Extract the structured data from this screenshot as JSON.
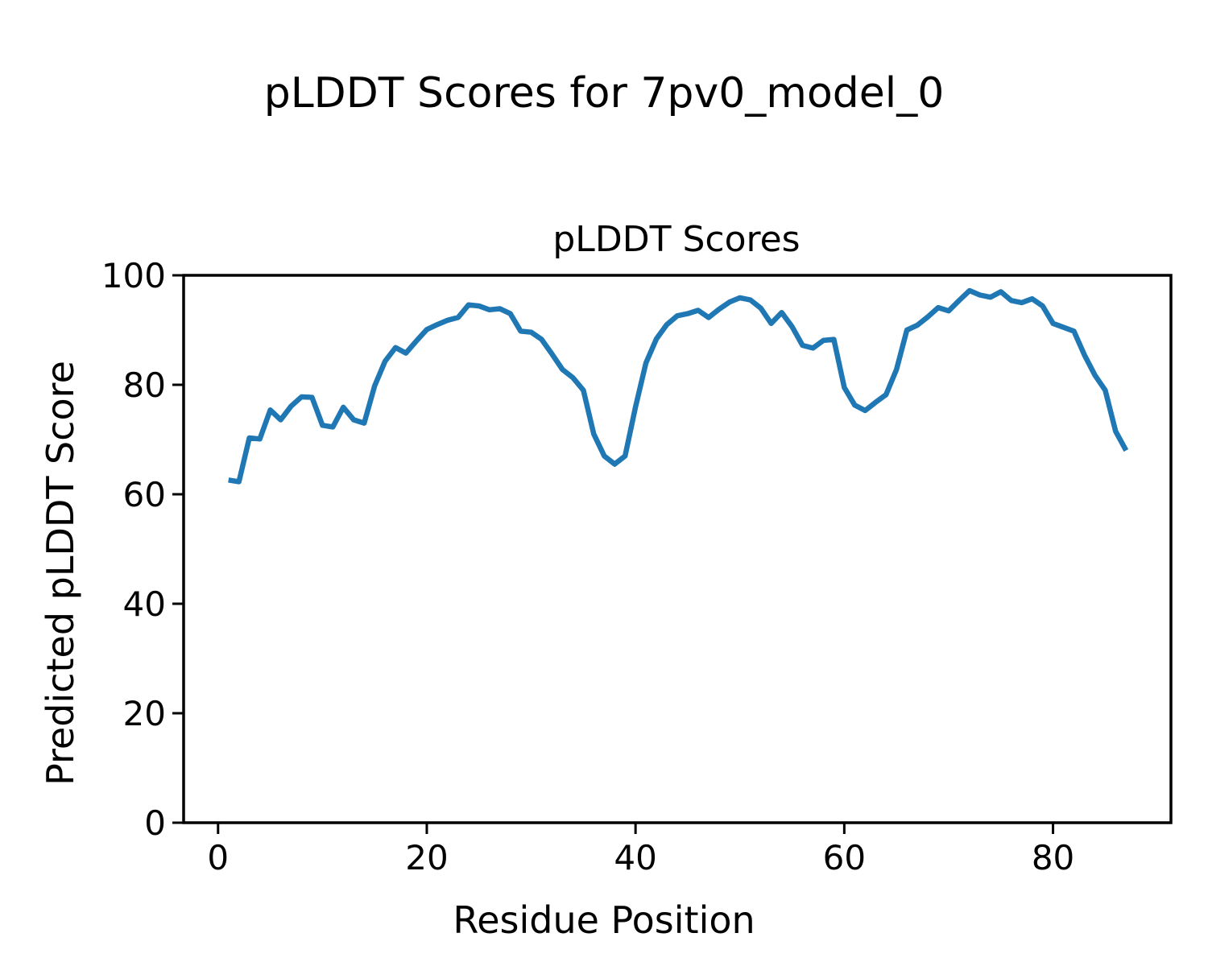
{
  "figure": {
    "suptitle": "pLDDT Scores for 7pv0_model_0"
  },
  "chart_data": {
    "type": "line",
    "title": "pLDDT Scores",
    "xlabel": "Residue Position",
    "ylabel": "Predicted pLDDT Score",
    "xlim": [
      -3.3,
      91.3
    ],
    "ylim": [
      0,
      100
    ],
    "x_ticks": [
      0,
      20,
      40,
      60,
      80
    ],
    "y_ticks": [
      0,
      20,
      40,
      60,
      80,
      100
    ],
    "grid": false,
    "legend": false,
    "line_color": "#1f77b4",
    "line_width": 6.5,
    "series_name": "pLDDT",
    "x": [
      1,
      2,
      3,
      4,
      5,
      6,
      7,
      8,
      9,
      10,
      11,
      12,
      13,
      14,
      15,
      16,
      17,
      18,
      19,
      20,
      21,
      22,
      23,
      24,
      25,
      26,
      27,
      28,
      29,
      30,
      31,
      32,
      33,
      34,
      35,
      36,
      37,
      38,
      39,
      40,
      41,
      42,
      43,
      44,
      45,
      46,
      47,
      48,
      49,
      50,
      51,
      52,
      53,
      54,
      55,
      56,
      57,
      58,
      59,
      60,
      61,
      62,
      63,
      64,
      65,
      66,
      67,
      68,
      69,
      70,
      71,
      72,
      73,
      74,
      75,
      76,
      77,
      78,
      79,
      80,
      81,
      82,
      83,
      84,
      85,
      86,
      87
    ],
    "y": [
      62.6,
      62.3,
      70.3,
      70.1,
      75.4,
      73.6,
      76.1,
      77.8,
      77.7,
      72.6,
      72.3,
      75.9,
      73.6,
      73.0,
      79.8,
      84.3,
      86.8,
      85.8,
      88.0,
      90.1,
      91.0,
      91.8,
      92.3,
      94.6,
      94.4,
      93.7,
      93.9,
      93.0,
      89.8,
      89.6,
      88.3,
      85.6,
      82.8,
      81.3,
      79.0,
      71.0,
      67.0,
      65.5,
      67.0,
      76.0,
      84.0,
      88.4,
      91.0,
      92.6,
      93.0,
      93.6,
      92.3,
      93.8,
      95.1,
      95.9,
      95.5,
      94.0,
      91.2,
      93.2,
      90.6,
      87.2,
      86.7,
      88.1,
      88.3,
      79.5,
      76.3,
      75.3,
      76.8,
      78.2,
      82.8,
      90.0,
      90.9,
      92.4,
      94.1,
      93.5,
      95.4,
      97.2,
      96.4,
      96.0,
      97.0,
      95.4,
      95.0,
      95.7,
      94.4,
      91.2,
      90.5,
      89.8,
      85.5,
      81.8,
      79.0,
      71.5,
      68.0
    ]
  }
}
